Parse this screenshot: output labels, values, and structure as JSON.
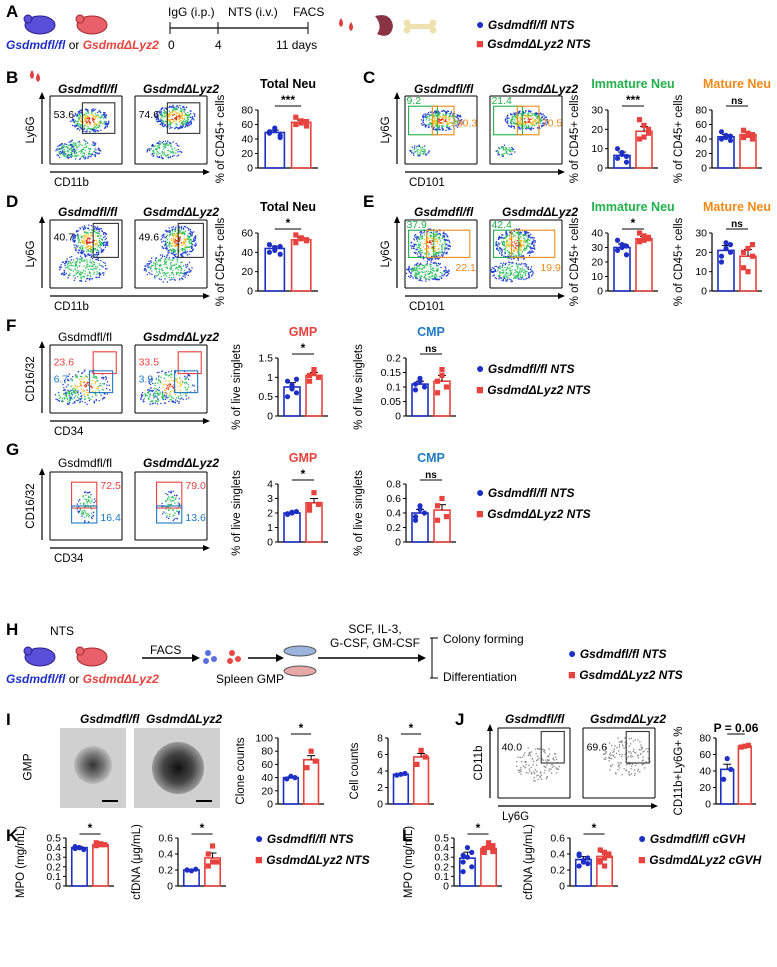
{
  "panels": {
    "A": {
      "letter": "A",
      "timeline": {
        "igg": "IgG (i.p.)",
        "nts": "NTS (i.v.)",
        "facs": "FACS",
        "t0": "0",
        "t4": "4",
        "t11": "11 days"
      },
      "mouse_label_a": "Gsdmdfl/fl",
      "mouse_or": "or",
      "mouse_label_b": "GsdmdΔLyz2"
    },
    "B": {
      "letter": "B",
      "g1": "Gsdmdfl/fl",
      "g2": "GsdmdΔLyz2",
      "v1": "53.6",
      "v2": "74.6",
      "y": "Ly6G",
      "x": "CD11b",
      "chart_title": "Total Neu",
      "ylabel": "% of CD45+ cells",
      "sig": "***"
    },
    "C": {
      "letter": "C",
      "g1": "Gsdmdfl/fl",
      "g2": "GsdmdΔLyz2",
      "v1a": "9.2",
      "v1b": "80.3",
      "v2a": "21.4",
      "v2b": "70.5",
      "y": "Ly6G",
      "x": "CD101",
      "t1": "Immature Neu",
      "t2": "Mature Neu",
      "ylabel": "% of CD45+ cells",
      "sig1": "***",
      "sig2": "ns"
    },
    "D": {
      "letter": "D",
      "g1": "Gsdmdfl/fl",
      "g2": "GsdmdΔLyz2",
      "v1": "40.7",
      "v2": "49.6",
      "y": "Ly6G",
      "x": "CD11b",
      "chart_title": "Total Neu",
      "ylabel": "% of CD45+ cells",
      "sig": "*"
    },
    "E": {
      "letter": "E",
      "g1": "Gsdmdfl/fl",
      "g2": "GsdmdΔLyz2",
      "v1a": "37.9",
      "v1b": "22.1",
      "v2a": "42.4",
      "v2b": "19.9",
      "y": "Ly6G",
      "x": "CD101",
      "t1": "Immature Neu",
      "t2": "Mature Neu",
      "ylabel": "% of CD45+ cells",
      "sig1": "*",
      "sig2": "ns"
    },
    "F": {
      "letter": "F",
      "g1": "Gsdmdfl/fl",
      "g2": "GsdmdΔLyz2",
      "v1a": "23.6",
      "v1b": "6.7",
      "v2a": "33.5",
      "v2b": "3.9",
      "y": "CD16/32",
      "x": "CD34",
      "t1": "GMP",
      "t2": "CMP",
      "ylabel": "% of live singlets",
      "sig1": "*",
      "sig2": "ns"
    },
    "G": {
      "letter": "G",
      "g1": "Gsdmdfl/fl",
      "g2": "GsdmdΔLyz2",
      "v1a": "72.5",
      "v1b": "16.4",
      "v2a": "79.0",
      "v2b": "13.6",
      "y": "CD16/32",
      "x": "CD34",
      "t1": "GMP",
      "t2": "CMP",
      "ylabel": "% of live singlets",
      "sig1": "*",
      "sig2": "ns"
    },
    "H": {
      "letter": "H",
      "nts": "NTS",
      "facs": "FACS",
      "spleen": "Spleen GMP",
      "cytokines1": "SCF, IL-3,",
      "cytokines2": "G-CSF, GM-CSF",
      "colony": "Colony forming",
      "diff": "Differentiation",
      "mouse_label_a": "Gsdmdfl/fl",
      "mouse_or": "or",
      "mouse_label_b": "GsdmdΔLyz2"
    },
    "I": {
      "letter": "I",
      "g1": "Gsdmdfl/fl",
      "g2": "GsdmdΔLyz2",
      "row": "GMP",
      "yl1": "Clone counts",
      "yl2": "Cell counts",
      "sig1": "*",
      "sig2": "*"
    },
    "J": {
      "letter": "J",
      "g1": "Gsdmdfl/fl",
      "g2": "GsdmdΔLyz2",
      "v1": "40.0",
      "v2": "69.6",
      "y": "CD11b",
      "x": "Ly6G",
      "ylabel": "CD11b+Ly6G+ %",
      "pval": "P = 0.06"
    },
    "K": {
      "letter": "K",
      "yl1": "MPO (mg/mL)",
      "yl2": "cfDNA (μg/mL)",
      "sig1": "*",
      "sig2": "*"
    },
    "L": {
      "letter": "L",
      "yl1": "MPO (mg/mL)",
      "yl2": "cfDNA (μg/mL)",
      "sig1": "*",
      "sig2": "*"
    }
  },
  "legends": {
    "nts": {
      "a": "Gsdmdfl/fl NTS",
      "b": "GsdmdΔLyz2 NTS"
    },
    "cgvh": {
      "a": "Gsdmdfl/fl cGVH",
      "b": "GsdmdΔLyz2 cGVH"
    }
  },
  "colors": {
    "blue": "#1d2fc4",
    "red": "#e8423e",
    "green": "#21b04b",
    "orange": "#f08a18",
    "cyan": "#1f7ac4"
  },
  "chart_data": [
    {
      "id": "B-total-neu",
      "type": "bar",
      "title": "Total Neu",
      "ylabel": "% of CD45+ cells",
      "ylim": [
        0,
        80
      ],
      "yticks": [
        0,
        20,
        40,
        60,
        80
      ],
      "series": [
        {
          "name": "Gsdmdfl/fl NTS",
          "values": [
            48,
            52,
            45,
            50,
            55,
            42
          ],
          "mean": 49
        },
        {
          "name": "GsdmdΔLyz2 NTS",
          "values": [
            60,
            65,
            58,
            70,
            62,
            64
          ],
          "mean": 63
        }
      ],
      "sig": "***"
    },
    {
      "id": "C-immature",
      "type": "bar",
      "title": "Immature Neu",
      "ylabel": "% of CD45+ cells",
      "ylim": [
        0,
        30
      ],
      "yticks": [
        0,
        10,
        20,
        30
      ],
      "series": [
        {
          "name": "fl/fl",
          "values": [
            5,
            8,
            3,
            10,
            7,
            6
          ],
          "mean": 6.5
        },
        {
          "name": "ΔLyz2",
          "values": [
            15,
            22,
            18,
            25,
            16,
            20
          ],
          "mean": 19
        }
      ],
      "sig": "***"
    },
    {
      "id": "C-mature",
      "type": "bar",
      "title": "Mature Neu",
      "ylabel": "% of CD45+ cells",
      "ylim": [
        0,
        80
      ],
      "yticks": [
        0,
        20,
        40,
        60,
        80
      ],
      "series": [
        {
          "name": "fl/fl",
          "values": [
            40,
            45,
            38,
            50,
            42,
            44
          ],
          "mean": 43
        },
        {
          "name": "ΔLyz2",
          "values": [
            42,
            48,
            40,
            52,
            45,
            46
          ],
          "mean": 46
        }
      ],
      "sig": "ns"
    },
    {
      "id": "D-total-neu",
      "type": "bar",
      "title": "Total Neu",
      "ylabel": "% of CD45+ cells",
      "ylim": [
        0,
        60
      ],
      "yticks": [
        0,
        20,
        40,
        60
      ],
      "series": [
        {
          "name": "fl/fl",
          "values": [
            40,
            45,
            38,
            48,
            42,
            46
          ],
          "mean": 44
        },
        {
          "name": "ΔLyz2",
          "values": [
            50,
            55,
            52,
            58,
            54,
            53
          ],
          "mean": 53
        }
      ],
      "sig": "*"
    },
    {
      "id": "E-immature",
      "type": "bar",
      "title": "Immature Neu",
      "ylabel": "% of CD45+ cells",
      "ylim": [
        0,
        40
      ],
      "yticks": [
        0,
        10,
        20,
        30,
        40
      ],
      "series": [
        {
          "name": "fl/fl",
          "values": [
            28,
            32,
            25,
            35,
            30,
            31
          ],
          "mean": 30
        },
        {
          "name": "ΔLyz2",
          "values": [
            34,
            38,
            36,
            40,
            35,
            37
          ],
          "mean": 36
        }
      ],
      "sig": "*"
    },
    {
      "id": "E-mature",
      "type": "bar",
      "title": "Mature Neu",
      "ylabel": "% of CD45+ cells",
      "ylim": [
        0,
        30
      ],
      "yticks": [
        0,
        10,
        20,
        30
      ],
      "series": [
        {
          "name": "fl/fl",
          "values": [
            18,
            25,
            20,
            15,
            22,
            24
          ],
          "mean": 21
        },
        {
          "name": "ΔLyz2",
          "values": [
            12,
            22,
            18,
            20,
            10,
            24
          ],
          "mean": 18
        }
      ],
      "sig": "ns"
    },
    {
      "id": "F-gmp",
      "type": "bar",
      "title": "GMP",
      "ylabel": "% of live singlets",
      "ylim": [
        0,
        1.5
      ],
      "yticks": [
        0.0,
        0.5,
        1.0,
        1.5
      ],
      "series": [
        {
          "name": "fl/fl",
          "values": [
            0.5,
            0.8,
            0.6,
            0.9,
            0.7,
            0.95
          ],
          "mean": 0.75
        },
        {
          "name": "ΔLyz2",
          "values": [
            0.9,
            1.1,
            1.0,
            1.05,
            1.2
          ],
          "mean": 1.05
        }
      ],
      "sig": "*"
    },
    {
      "id": "F-cmp",
      "type": "bar",
      "title": "CMP",
      "ylabel": "% of live singlets",
      "ylim": [
        0,
        0.2
      ],
      "yticks": [
        0.0,
        0.05,
        0.1,
        0.15,
        0.2
      ],
      "series": [
        {
          "name": "fl/fl",
          "values": [
            0.09,
            0.12,
            0.1,
            0.11,
            0.13
          ],
          "mean": 0.11
        },
        {
          "name": "ΔLyz2",
          "values": [
            0.08,
            0.16,
            0.1,
            0.12,
            0.14
          ],
          "mean": 0.12
        }
      ],
      "sig": "ns"
    },
    {
      "id": "G-gmp",
      "type": "bar",
      "title": "GMP",
      "ylabel": "% of live singlets",
      "ylim": [
        0,
        4
      ],
      "yticks": [
        0,
        1,
        2,
        3,
        4
      ],
      "series": [
        {
          "name": "fl/fl",
          "values": [
            1.9,
            2.0,
            2.1,
            1.95,
            2.05
          ],
          "mean": 2.0
        },
        {
          "name": "ΔLyz2",
          "values": [
            2.2,
            3.4,
            2.6,
            2.5
          ],
          "mean": 2.7
        }
      ],
      "sig": "*"
    },
    {
      "id": "G-cmp",
      "type": "bar",
      "title": "CMP",
      "ylabel": "% of live singlets",
      "ylim": [
        0,
        0.8
      ],
      "yticks": [
        0.0,
        0.2,
        0.4,
        0.6,
        0.8
      ],
      "series": [
        {
          "name": "fl/fl",
          "values": [
            0.3,
            0.45,
            0.4,
            0.35,
            0.5
          ],
          "mean": 0.4
        },
        {
          "name": "ΔLyz2",
          "values": [
            0.3,
            0.6,
            0.35,
            0.5
          ],
          "mean": 0.44
        }
      ],
      "sig": "ns"
    },
    {
      "id": "I-clone",
      "type": "bar",
      "title": "",
      "ylabel": "Clone counts",
      "ylim": [
        0,
        100
      ],
      "yticks": [
        0,
        20,
        40,
        60,
        80,
        100
      ],
      "series": [
        {
          "name": "fl/fl",
          "values": [
            38,
            42,
            40
          ],
          "mean": 40
        },
        {
          "name": "ΔLyz2",
          "values": [
            55,
            80,
            65
          ],
          "mean": 67
        }
      ],
      "sig": "*"
    },
    {
      "id": "I-cell",
      "type": "bar",
      "title": "",
      "ylabel": "Cell counts",
      "ylim": [
        0,
        8
      ],
      "yticks": [
        0,
        2,
        4,
        6,
        8
      ],
      "series": [
        {
          "name": "fl/fl",
          "values": [
            3.5,
            3.6,
            3.7
          ],
          "mean": 3.6
        },
        {
          "name": "ΔLyz2",
          "values": [
            4.8,
            6.5,
            5.7
          ],
          "mean": 5.7
        }
      ],
      "sig": "*"
    },
    {
      "id": "J-cd11b",
      "type": "bar",
      "title": "",
      "ylabel": "CD11b+Ly6G+ %",
      "ylim": [
        0,
        80
      ],
      "yticks": [
        0,
        20,
        40,
        60,
        80
      ],
      "series": [
        {
          "name": "fl/fl",
          "values": [
            30,
            55,
            42
          ],
          "mean": 42
        },
        {
          "name": "ΔLyz2",
          "values": [
            69,
            70,
            71
          ],
          "mean": 70
        }
      ],
      "sig": "P = 0.06"
    },
    {
      "id": "K-mpo",
      "type": "bar",
      "title": "",
      "ylabel": "MPO (mg/mL)",
      "ylim": [
        0,
        0.5
      ],
      "yticks": [
        0.0,
        0.1,
        0.2,
        0.3,
        0.4,
        0.5
      ],
      "series": [
        {
          "name": "fl/fl",
          "values": [
            0.39,
            0.4,
            0.38,
            0.41,
            0.4
          ],
          "mean": 0.4
        },
        {
          "name": "ΔLyz2",
          "values": [
            0.42,
            0.44,
            0.43,
            0.45,
            0.43
          ],
          "mean": 0.43
        }
      ],
      "sig": "*"
    },
    {
      "id": "K-cfdna",
      "type": "bar",
      "title": "",
      "ylabel": "cfDNA (μg/mL)",
      "ylim": [
        0,
        0.6
      ],
      "yticks": [
        0.0,
        0.2,
        0.4,
        0.6
      ],
      "series": [
        {
          "name": "fl/fl",
          "values": [
            0.2,
            0.19,
            0.21,
            0.2
          ],
          "mean": 0.2
        },
        {
          "name": "ΔLyz2",
          "values": [
            0.25,
            0.5,
            0.3,
            0.4,
            0.3
          ],
          "mean": 0.35
        }
      ],
      "sig": "*"
    },
    {
      "id": "L-mpo",
      "type": "bar",
      "title": "",
      "ylabel": "MPO (mg/mL)",
      "ylim": [
        0,
        0.5
      ],
      "yticks": [
        0.0,
        0.1,
        0.2,
        0.3,
        0.4,
        0.5
      ],
      "series": [
        {
          "name": "fl/fl",
          "values": [
            0.15,
            0.3,
            0.35,
            0.25,
            0.4,
            0.2,
            0.32
          ],
          "mean": 0.29
        },
        {
          "name": "ΔLyz2",
          "values": [
            0.35,
            0.4,
            0.42,
            0.38,
            0.45,
            0.36,
            0.39
          ],
          "mean": 0.39
        }
      ],
      "sig": "*"
    },
    {
      "id": "L-cfdna",
      "type": "bar",
      "title": "",
      "ylabel": "cfDNA (μg/mL)",
      "ylim": [
        0,
        0.6
      ],
      "yticks": [
        0.0,
        0.2,
        0.4,
        0.6
      ],
      "series": [
        {
          "name": "fl/fl",
          "values": [
            0.25,
            0.3,
            0.35,
            0.4,
            0.32,
            0.28,
            0.38,
            0.3
          ],
          "mean": 0.33
        },
        {
          "name": "ΔLyz2",
          "values": [
            0.3,
            0.35,
            0.4,
            0.45,
            0.25,
            0.38,
            0.32,
            0.42
          ],
          "mean": 0.37
        }
      ],
      "sig": "*"
    }
  ]
}
